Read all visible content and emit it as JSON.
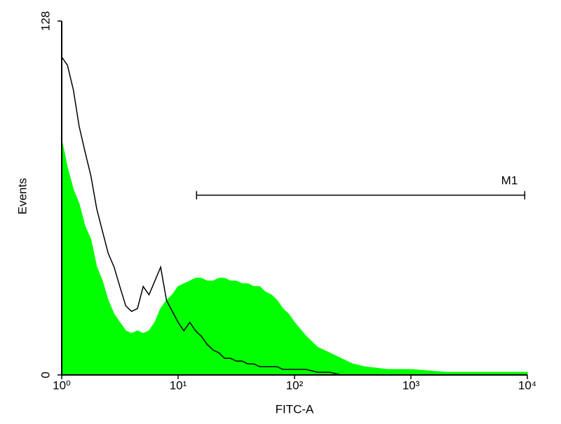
{
  "chart_data": {
    "type": "histogram-overlay",
    "x_label": "FITC-A",
    "y_label": "Events",
    "xscale": "log",
    "xlim": [
      1,
      10000
    ],
    "xticks": [
      {
        "value": 1,
        "label": "10⁰"
      },
      {
        "value": 10,
        "label": "10¹"
      },
      {
        "value": 100,
        "label": "10²"
      },
      {
        "value": 1000,
        "label": "10³"
      },
      {
        "value": 10000,
        "label": "10⁴"
      }
    ],
    "ylim": [
      0,
      128
    ],
    "yticks": [
      0,
      128
    ],
    "x": [
      1,
      1.12,
      1.26,
      1.41,
      1.58,
      1.78,
      2.0,
      2.24,
      2.51,
      2.82,
      3.16,
      3.55,
      3.98,
      4.47,
      5.01,
      5.62,
      6.31,
      7.08,
      7.94,
      8.91,
      10,
      11.2,
      12.6,
      14.1,
      15.8,
      17.8,
      20,
      22.4,
      25.1,
      28.2,
      31.6,
      35.5,
      39.8,
      44.7,
      50.1,
      56.2,
      63.1,
      70.8,
      79.4,
      89.1,
      100,
      126,
      158,
      200,
      251,
      316,
      398,
      631,
      1000,
      2000,
      4000,
      10000
    ],
    "series": [
      {
        "color": "#00ff00",
        "style": "area",
        "values": [
          85,
          75,
          67,
          62,
          54,
          49,
          39,
          34,
          27,
          22,
          19,
          16,
          15,
          16,
          15,
          16,
          19,
          24,
          27,
          29,
          32,
          33,
          34,
          35,
          35,
          34,
          34,
          35,
          35,
          34,
          34,
          33,
          33,
          32,
          32,
          30,
          29,
          27,
          24,
          22,
          19,
          14,
          10,
          8,
          6,
          4,
          3,
          2,
          2,
          1,
          1,
          1
        ]
      },
      {
        "color": "#000000",
        "style": "line",
        "values": [
          115,
          112,
          103,
          90,
          81,
          72,
          60,
          52,
          44,
          39,
          32,
          25,
          23,
          24,
          32,
          29,
          34,
          39,
          27,
          23,
          19,
          16,
          19,
          16,
          14,
          11,
          9,
          8,
          6,
          6,
          5,
          5,
          4,
          4,
          3,
          3,
          3,
          3,
          2,
          2,
          2,
          2,
          1,
          1,
          0,
          0,
          0,
          0,
          0,
          0,
          0,
          0
        ]
      }
    ],
    "gates": [
      {
        "label": "M1",
        "range": [
          14.4,
          9500
        ],
        "y": 65
      }
    ]
  }
}
